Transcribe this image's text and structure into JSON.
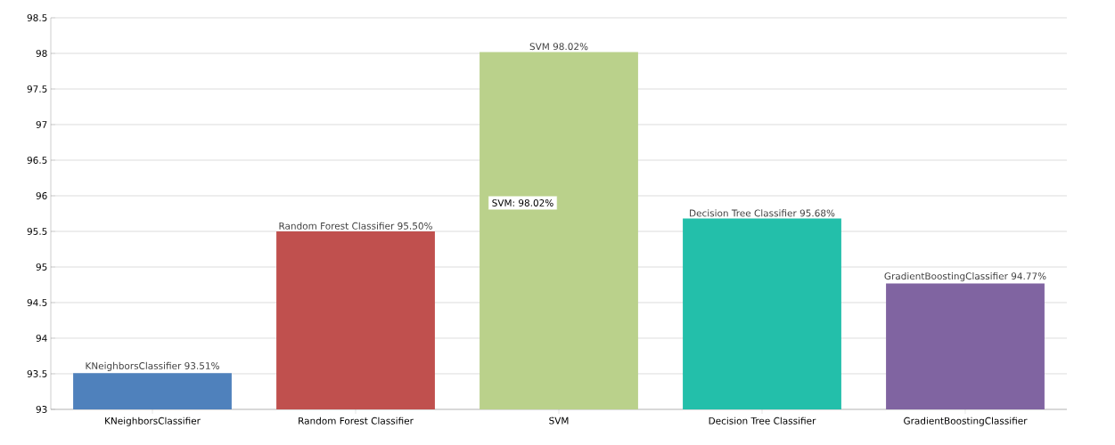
{
  "chart_data": {
    "type": "bar",
    "categories": [
      "KNeighborsClassifier",
      "Random Forest Classifier",
      "SVM",
      "Decision Tree Classifier",
      "GradientBoostingClassifier"
    ],
    "values": [
      93.51,
      95.5,
      98.02,
      95.68,
      94.77
    ],
    "colors": [
      "#4f81bc",
      "#c0504e",
      "#bad18b",
      "#23bfaa",
      "#8064a1"
    ],
    "value_labels": [
      "KNeighborsClassifier 93.51%",
      "Random Forest Classifier 95.50%",
      "SVM 98.02%",
      "Decision Tree Classifier 95.68%",
      "GradientBoostingClassifier 94.77%"
    ],
    "ylim": [
      93,
      98.5
    ],
    "yticks": [
      93,
      93.5,
      94,
      94.5,
      95,
      95.5,
      96,
      96.5,
      97,
      97.5,
      98,
      98.5
    ],
    "grid": "y",
    "annotations": [
      "SVM: 98.02%"
    ]
  }
}
